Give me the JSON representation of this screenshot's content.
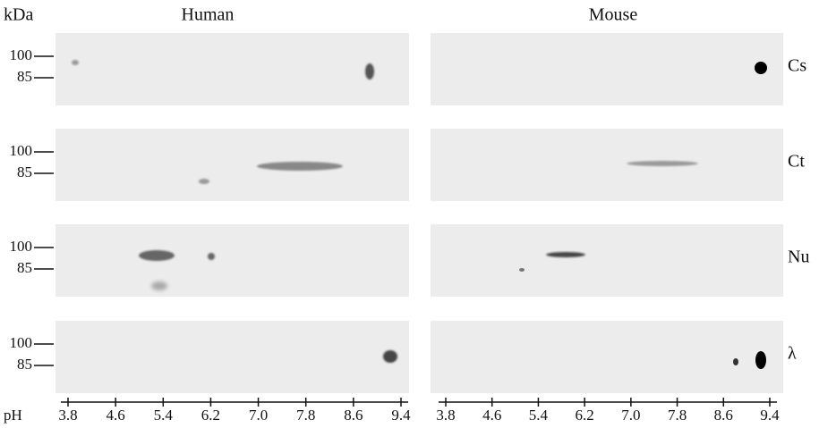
{
  "header": {
    "unit": "kDa",
    "columns": [
      "Human",
      "Mouse"
    ]
  },
  "rows": [
    {
      "label": "Cs",
      "markers": [
        "100",
        "85"
      ]
    },
    {
      "label": "Ct",
      "markers": [
        "100",
        "85"
      ]
    },
    {
      "label": "Nu",
      "markers": [
        "100",
        "85"
      ]
    },
    {
      "label": "λ",
      "markers": [
        "100",
        "85"
      ]
    }
  ],
  "ph_axis": {
    "label": "pH",
    "ticks": [
      "3.8",
      "4.6",
      "5.4",
      "6.2",
      "7.0",
      "7.8",
      "8.6",
      "9.4"
    ]
  }
}
